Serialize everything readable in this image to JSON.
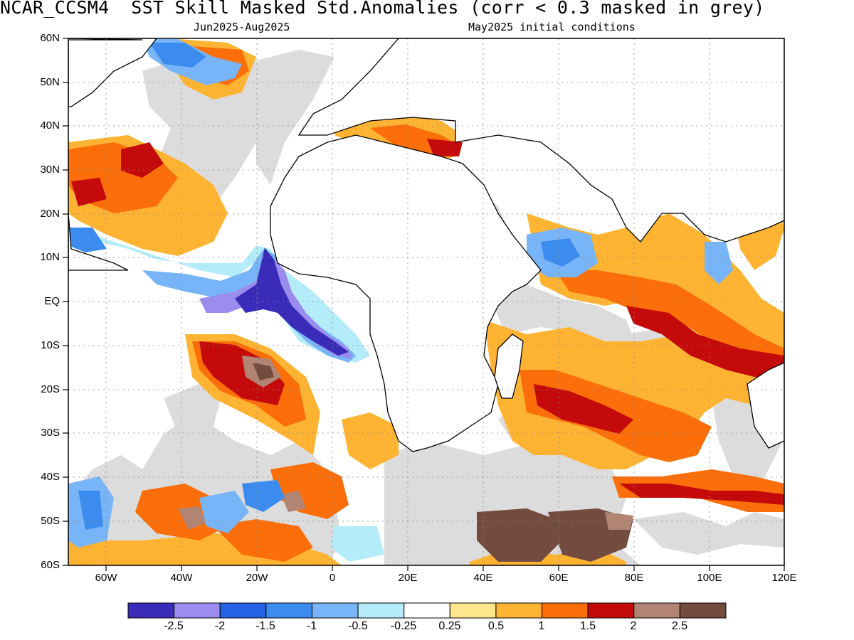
{
  "title": "NCAR_CCSM4  SST Skill Masked Std.Anomalies (corr < 0.3 masked in grey)",
  "subtitle_left": "Jun2025-Aug2025",
  "subtitle_right": "May2025 initial conditions",
  "y_axis": {
    "labels": [
      "60N",
      "50N",
      "40N",
      "30N",
      "20N",
      "10N",
      "EQ",
      "10S",
      "20S",
      "30S",
      "40S",
      "50S",
      "60S"
    ]
  },
  "x_axis": {
    "labels": [
      "60W",
      "40W",
      "20W",
      "0",
      "20E",
      "40E",
      "60E",
      "80E",
      "100E",
      "120E"
    ]
  },
  "colorbar": {
    "colors": [
      "#3a2cb8",
      "#9b8cf0",
      "#2462e6",
      "#3c8cf0",
      "#78b4f8",
      "#b4ecfa",
      "#ffffff",
      "#fee68c",
      "#feb432",
      "#fb6e0a",
      "#c40a0a",
      "#b28474",
      "#734b3f"
    ],
    "labels": [
      "-2.5",
      "-2",
      "-1.5",
      "-1",
      "-0.5",
      "-0.25",
      "0.25",
      "0.5",
      "1",
      "1.5",
      "2",
      "2.5"
    ]
  },
  "mask_color": "#dcdcdc"
}
